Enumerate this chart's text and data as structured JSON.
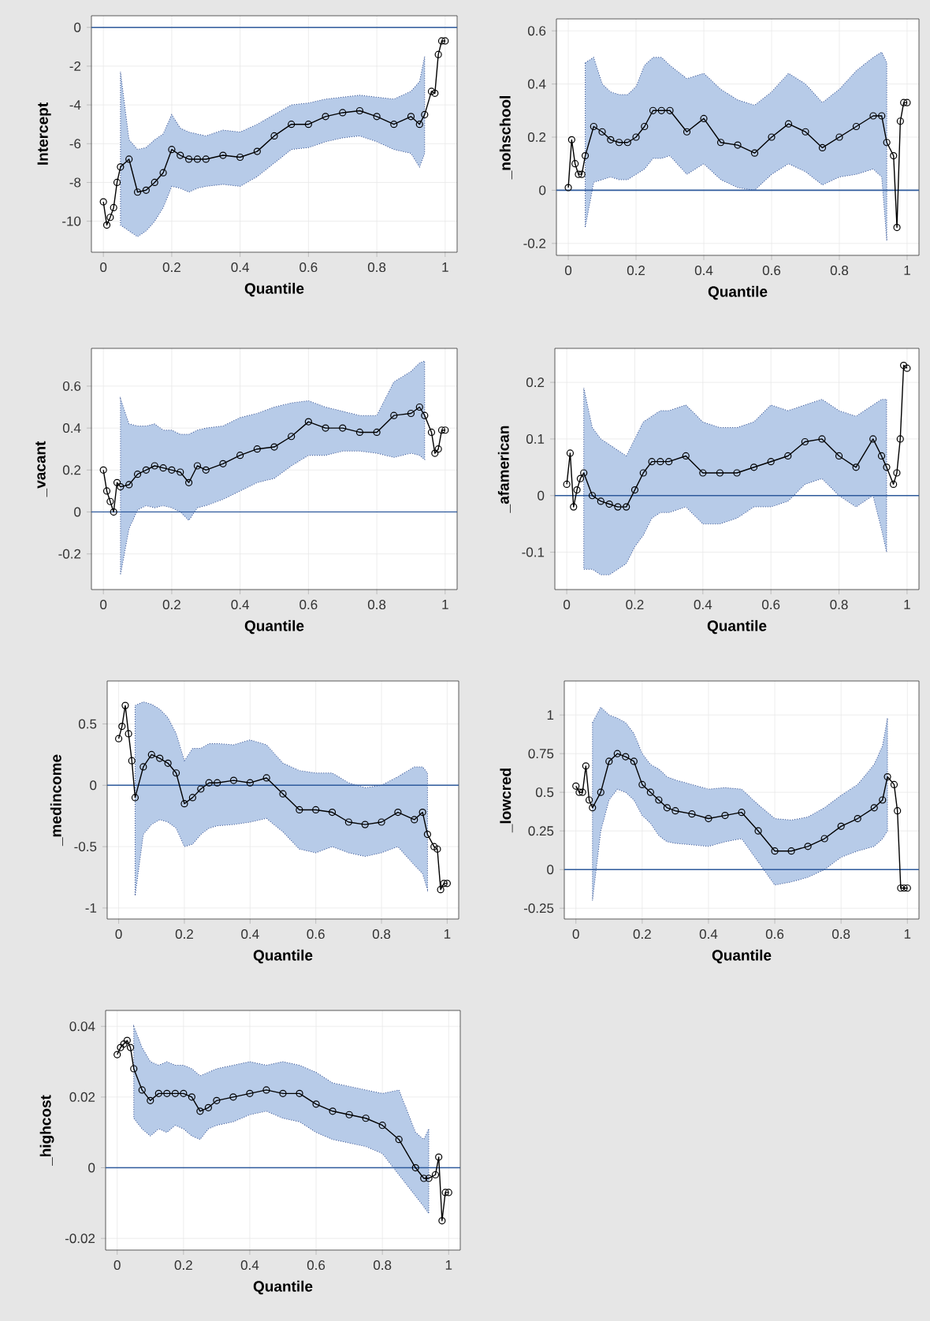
{
  "chart_data": [
    {
      "type": "line",
      "xlabel": "Quantile",
      "ylabel": "Intercept",
      "x": [
        0,
        0.01,
        0.02,
        0.03,
        0.04,
        0.05,
        0.075,
        0.1,
        0.125,
        0.15,
        0.175,
        0.2,
        0.225,
        0.25,
        0.275,
        0.3,
        0.35,
        0.4,
        0.45,
        0.5,
        0.55,
        0.6,
        0.65,
        0.7,
        0.75,
        0.8,
        0.85,
        0.9,
        0.925,
        0.94,
        0.96,
        0.97,
        0.98,
        0.99,
        1.0
      ],
      "xlim": [
        -0.035,
        1.035
      ],
      "xticks": [
        0,
        0.2,
        0.4,
        0.6,
        0.8,
        1
      ],
      "ylim": [
        -11.6,
        0.6
      ],
      "yticks": [
        -10,
        -8,
        -6,
        -4,
        -2,
        0
      ],
      "grid": true,
      "marker": "circle",
      "line_style": "solid",
      "ref_lines": [
        {
          "axis": "y",
          "value": 0,
          "color": "#2e5a9c"
        }
      ],
      "series": [
        {
          "color": "#000000",
          "values": [
            -9,
            -10.2,
            -9.8,
            -9.3,
            -8,
            -7.2,
            -6.8,
            -8.5,
            -8.4,
            -8,
            -7.5,
            -6.3,
            -6.6,
            -6.8,
            -6.8,
            -6.8,
            -6.6,
            -6.7,
            -6.4,
            -5.6,
            -5.0,
            -5.0,
            -4.6,
            -4.4,
            -4.3,
            -4.6,
            -5.0,
            -4.6,
            -5.0,
            -4.5,
            -3.3,
            -3.4,
            -1.4,
            -0.7,
            -0.7
          ],
          "lower": [
            null,
            null,
            null,
            null,
            null,
            -10.2,
            -10.5,
            -10.8,
            -10.5,
            -10.0,
            -9.3,
            -8.2,
            -8.3,
            -8.5,
            -8.3,
            -8.2,
            -8.1,
            -8.2,
            -7.7,
            -7.0,
            -6.3,
            -6.2,
            -5.9,
            -5.7,
            -5.6,
            -5.9,
            -6.3,
            -6.5,
            -7.2,
            -6.5,
            null,
            null,
            null,
            null,
            null
          ],
          "upper": [
            null,
            null,
            null,
            null,
            null,
            -2.3,
            -5.8,
            -6.3,
            -6.2,
            -5.8,
            -5.5,
            -4.5,
            -5.2,
            -5.4,
            -5.5,
            -5.6,
            -5.3,
            -5.4,
            -5.0,
            -4.5,
            -4.0,
            -3.9,
            -3.7,
            -3.6,
            -3.5,
            -3.6,
            -3.7,
            -3.3,
            -2.8,
            -1.5,
            null,
            null,
            null,
            null,
            null
          ]
        }
      ]
    },
    {
      "type": "line",
      "xlabel": "Quantile",
      "ylabel": "_nohschool",
      "x": [
        0,
        0.01,
        0.02,
        0.03,
        0.04,
        0.05,
        0.075,
        0.1,
        0.125,
        0.15,
        0.175,
        0.2,
        0.225,
        0.25,
        0.275,
        0.3,
        0.35,
        0.4,
        0.45,
        0.5,
        0.55,
        0.6,
        0.65,
        0.7,
        0.75,
        0.8,
        0.85,
        0.9,
        0.925,
        0.94,
        0.96,
        0.97,
        0.98,
        0.99,
        1.0
      ],
      "xlim": [
        -0.035,
        1.035
      ],
      "xticks": [
        0,
        0.2,
        0.4,
        0.6,
        0.8,
        1
      ],
      "ylim": [
        -0.245,
        0.645
      ],
      "yticks": [
        -0.2,
        0,
        0.2,
        0.4,
        0.6
      ],
      "grid": true,
      "marker": "circle",
      "line_style": "solid",
      "ref_lines": [
        {
          "axis": "y",
          "value": 0,
          "color": "#2e5a9c"
        }
      ],
      "series": [
        {
          "color": "#000000",
          "values": [
            0.01,
            0.19,
            0.1,
            0.06,
            0.06,
            0.13,
            0.24,
            0.22,
            0.19,
            0.18,
            0.18,
            0.2,
            0.24,
            0.3,
            0.3,
            0.3,
            0.22,
            0.27,
            0.18,
            0.17,
            0.14,
            0.2,
            0.25,
            0.22,
            0.16,
            0.2,
            0.24,
            0.28,
            0.28,
            0.18,
            0.13,
            -0.14,
            0.26,
            0.33,
            0.33
          ],
          "lower": [
            null,
            null,
            null,
            null,
            null,
            -0.14,
            0.03,
            0.04,
            0.05,
            0.04,
            0.04,
            0.06,
            0.08,
            0.12,
            0.12,
            0.13,
            0.06,
            0.1,
            0.04,
            0.01,
            0.0,
            0.06,
            0.1,
            0.07,
            0.02,
            0.05,
            0.06,
            0.08,
            0.05,
            -0.19,
            null,
            null,
            null,
            null,
            null
          ],
          "upper": [
            null,
            null,
            null,
            null,
            null,
            0.48,
            0.5,
            0.4,
            0.37,
            0.36,
            0.36,
            0.39,
            0.47,
            0.5,
            0.5,
            0.47,
            0.42,
            0.44,
            0.38,
            0.34,
            0.32,
            0.37,
            0.44,
            0.4,
            0.33,
            0.38,
            0.45,
            0.5,
            0.52,
            0.48,
            null,
            null,
            null,
            null,
            null
          ]
        }
      ]
    },
    {
      "type": "line",
      "xlabel": "Quantile",
      "ylabel": "_vacant",
      "x": [
        0,
        0.01,
        0.02,
        0.03,
        0.04,
        0.05,
        0.075,
        0.1,
        0.125,
        0.15,
        0.175,
        0.2,
        0.225,
        0.25,
        0.275,
        0.3,
        0.35,
        0.4,
        0.45,
        0.5,
        0.55,
        0.6,
        0.65,
        0.7,
        0.75,
        0.8,
        0.85,
        0.9,
        0.925,
        0.94,
        0.96,
        0.97,
        0.98,
        0.99,
        1.0
      ],
      "xlim": [
        -0.035,
        1.035
      ],
      "xticks": [
        0,
        0.2,
        0.4,
        0.6,
        0.8,
        1
      ],
      "ylim": [
        -0.37,
        0.78
      ],
      "yticks": [
        -0.2,
        0,
        0.2,
        0.4,
        0.6
      ],
      "grid": true,
      "marker": "circle",
      "line_style": "solid",
      "ref_lines": [
        {
          "axis": "y",
          "value": 0,
          "color": "#2e5a9c"
        }
      ],
      "series": [
        {
          "color": "#000000",
          "values": [
            0.2,
            0.1,
            0.05,
            0.0,
            0.14,
            0.12,
            0.13,
            0.18,
            0.2,
            0.22,
            0.21,
            0.2,
            0.19,
            0.14,
            0.22,
            0.2,
            0.23,
            0.27,
            0.3,
            0.31,
            0.36,
            0.43,
            0.4,
            0.4,
            0.38,
            0.38,
            0.46,
            0.47,
            0.5,
            0.46,
            0.38,
            0.28,
            0.3,
            0.39,
            0.39
          ],
          "lower": [
            null,
            null,
            null,
            null,
            null,
            -0.3,
            -0.08,
            0.01,
            0.03,
            0.02,
            0.03,
            0.02,
            0.0,
            -0.04,
            0.02,
            0.03,
            0.06,
            0.1,
            0.14,
            0.16,
            0.22,
            0.27,
            0.27,
            0.29,
            0.29,
            0.28,
            0.26,
            0.28,
            0.27,
            0.25,
            null,
            null,
            null,
            null,
            null
          ],
          "upper": [
            null,
            null,
            null,
            null,
            null,
            0.54,
            0.42,
            0.41,
            0.41,
            0.42,
            0.39,
            0.39,
            0.37,
            0.37,
            0.39,
            0.4,
            0.41,
            0.45,
            0.47,
            0.5,
            0.52,
            0.53,
            0.5,
            0.48,
            0.46,
            0.46,
            0.62,
            0.67,
            0.71,
            0.72,
            null,
            null,
            null,
            null,
            null
          ]
        }
      ]
    },
    {
      "type": "line",
      "xlabel": "Quantile",
      "ylabel": "_afamerican",
      "x": [
        0,
        0.01,
        0.02,
        0.03,
        0.04,
        0.05,
        0.075,
        0.1,
        0.125,
        0.15,
        0.175,
        0.2,
        0.225,
        0.25,
        0.275,
        0.3,
        0.35,
        0.4,
        0.45,
        0.5,
        0.55,
        0.6,
        0.65,
        0.7,
        0.75,
        0.8,
        0.85,
        0.9,
        0.925,
        0.94,
        0.96,
        0.97,
        0.98,
        0.99,
        1.0
      ],
      "xlim": [
        -0.035,
        1.035
      ],
      "xticks": [
        0,
        0.2,
        0.4,
        0.6,
        0.8,
        1
      ],
      "ylim": [
        -0.166,
        0.26
      ],
      "yticks": [
        -0.1,
        0,
        0.1,
        0.2
      ],
      "grid": true,
      "marker": "circle",
      "line_style": "solid",
      "ref_lines": [
        {
          "axis": "y",
          "value": 0,
          "color": "#2e5a9c"
        }
      ],
      "series": [
        {
          "color": "#000000",
          "values": [
            0.02,
            0.075,
            -0.02,
            0.01,
            0.03,
            0.04,
            0.0,
            -0.01,
            -0.015,
            -0.02,
            -0.02,
            0.01,
            0.04,
            0.06,
            0.06,
            0.06,
            0.07,
            0.04,
            0.04,
            0.04,
            0.05,
            0.06,
            0.07,
            0.095,
            0.1,
            0.07,
            0.05,
            0.1,
            0.07,
            0.05,
            0.02,
            0.04,
            0.1,
            0.23,
            0.225
          ],
          "lower": [
            null,
            null,
            null,
            null,
            null,
            -0.13,
            -0.13,
            -0.14,
            -0.14,
            -0.13,
            -0.12,
            -0.09,
            -0.07,
            -0.04,
            -0.03,
            -0.03,
            -0.02,
            -0.05,
            -0.05,
            -0.04,
            -0.02,
            -0.02,
            -0.01,
            0.02,
            0.03,
            0.0,
            -0.02,
            0.0,
            -0.06,
            -0.1,
            null,
            null,
            null,
            null,
            null
          ],
          "upper": [
            null,
            null,
            null,
            null,
            null,
            0.19,
            0.12,
            0.1,
            0.09,
            0.08,
            0.07,
            0.1,
            0.13,
            0.14,
            0.15,
            0.15,
            0.16,
            0.13,
            0.12,
            0.12,
            0.13,
            0.16,
            0.15,
            0.16,
            0.17,
            0.15,
            0.14,
            0.16,
            0.17,
            0.17,
            null,
            null,
            null,
            null,
            null
          ]
        }
      ]
    },
    {
      "type": "line",
      "xlabel": "Quantile",
      "ylabel": "_medincome",
      "x": [
        0,
        0.01,
        0.02,
        0.03,
        0.04,
        0.05,
        0.075,
        0.1,
        0.125,
        0.15,
        0.175,
        0.2,
        0.225,
        0.25,
        0.275,
        0.3,
        0.35,
        0.4,
        0.45,
        0.5,
        0.55,
        0.6,
        0.65,
        0.7,
        0.75,
        0.8,
        0.85,
        0.9,
        0.925,
        0.94,
        0.96,
        0.97,
        0.98,
        0.99,
        1.0
      ],
      "xlim": [
        -0.035,
        1.035
      ],
      "xticks": [
        0,
        0.2,
        0.4,
        0.6,
        0.8,
        1
      ],
      "ylim": [
        -1.09,
        0.85
      ],
      "yticks": [
        -1,
        -0.5,
        0,
        0.5
      ],
      "grid": true,
      "marker": "circle",
      "line_style": "solid",
      "ref_lines": [
        {
          "axis": "y",
          "value": 0,
          "color": "#2e5a9c"
        }
      ],
      "series": [
        {
          "color": "#000000",
          "values": [
            0.38,
            0.48,
            0.65,
            0.42,
            0.2,
            -0.1,
            0.15,
            0.25,
            0.22,
            0.18,
            0.1,
            -0.15,
            -0.1,
            -0.03,
            0.02,
            0.02,
            0.04,
            0.02,
            0.06,
            -0.07,
            -0.2,
            -0.2,
            -0.22,
            -0.3,
            -0.32,
            -0.3,
            -0.22,
            -0.28,
            -0.22,
            -0.4,
            -0.5,
            -0.52,
            -0.85,
            -0.8,
            -0.8
          ],
          "lower": [
            null,
            null,
            null,
            null,
            null,
            -0.9,
            -0.4,
            -0.32,
            -0.28,
            -0.3,
            -0.35,
            -0.5,
            -0.48,
            -0.4,
            -0.35,
            -0.33,
            -0.32,
            -0.3,
            -0.27,
            -0.38,
            -0.52,
            -0.55,
            -0.5,
            -0.55,
            -0.58,
            -0.55,
            -0.5,
            -0.65,
            -0.72,
            -0.85,
            null,
            null,
            null,
            null,
            null
          ],
          "upper": [
            null,
            null,
            null,
            null,
            null,
            0.65,
            0.68,
            0.66,
            0.62,
            0.55,
            0.42,
            0.2,
            0.3,
            0.3,
            0.34,
            0.34,
            0.33,
            0.37,
            0.33,
            0.18,
            0.12,
            0.1,
            0.1,
            0.02,
            -0.02,
            0.0,
            0.07,
            0.15,
            0.15,
            0.1,
            null,
            null,
            null,
            null,
            null
          ]
        }
      ]
    },
    {
      "type": "line",
      "xlabel": "Quantile",
      "ylabel": "_lowcred",
      "x": [
        0,
        0.01,
        0.02,
        0.03,
        0.04,
        0.05,
        0.075,
        0.1,
        0.125,
        0.15,
        0.175,
        0.2,
        0.225,
        0.25,
        0.275,
        0.3,
        0.35,
        0.4,
        0.45,
        0.5,
        0.55,
        0.6,
        0.65,
        0.7,
        0.75,
        0.8,
        0.85,
        0.9,
        0.925,
        0.94,
        0.96,
        0.97,
        0.98,
        0.99,
        1.0
      ],
      "xlim": [
        -0.035,
        1.035
      ],
      "xticks": [
        0,
        0.2,
        0.4,
        0.6,
        0.8,
        1
      ],
      "ylim": [
        -0.32,
        1.22
      ],
      "yticks": [
        -0.25,
        0,
        0.25,
        0.5,
        0.75,
        1
      ],
      "grid": true,
      "marker": "circle",
      "line_style": "solid",
      "ref_lines": [
        {
          "axis": "y",
          "value": 0,
          "color": "#2e5a9c"
        }
      ],
      "series": [
        {
          "color": "#000000",
          "values": [
            0.54,
            0.5,
            0.5,
            0.67,
            0.45,
            0.4,
            0.5,
            0.7,
            0.75,
            0.73,
            0.7,
            0.55,
            0.5,
            0.45,
            0.4,
            0.38,
            0.36,
            0.33,
            0.35,
            0.37,
            0.25,
            0.12,
            0.12,
            0.15,
            0.2,
            0.28,
            0.33,
            0.4,
            0.45,
            0.6,
            0.55,
            0.38,
            -0.12,
            -0.12,
            -0.12
          ],
          "lower": [
            null,
            null,
            null,
            null,
            null,
            -0.2,
            0.25,
            0.45,
            0.52,
            0.5,
            0.45,
            0.35,
            0.3,
            0.22,
            0.18,
            0.17,
            0.16,
            0.15,
            0.18,
            0.2,
            0.05,
            -0.1,
            -0.08,
            -0.05,
            0.0,
            0.08,
            0.12,
            0.15,
            0.2,
            0.25,
            null,
            null,
            null,
            null,
            null
          ],
          "upper": [
            null,
            null,
            null,
            null,
            null,
            0.95,
            1.05,
            1.0,
            0.98,
            0.95,
            0.88,
            0.75,
            0.68,
            0.65,
            0.6,
            0.58,
            0.55,
            0.52,
            0.53,
            0.52,
            0.42,
            0.33,
            0.32,
            0.34,
            0.4,
            0.48,
            0.55,
            0.68,
            0.8,
            0.98,
            null,
            null,
            null,
            null,
            null
          ]
        }
      ]
    },
    {
      "type": "line",
      "xlabel": "Quantile",
      "ylabel": "_highcost",
      "x": [
        0,
        0.01,
        0.02,
        0.03,
        0.04,
        0.05,
        0.075,
        0.1,
        0.125,
        0.15,
        0.175,
        0.2,
        0.225,
        0.25,
        0.275,
        0.3,
        0.35,
        0.4,
        0.45,
        0.5,
        0.55,
        0.6,
        0.65,
        0.7,
        0.75,
        0.8,
        0.85,
        0.9,
        0.925,
        0.94,
        0.96,
        0.97,
        0.98,
        0.99,
        1.0
      ],
      "xlim": [
        -0.035,
        1.035
      ],
      "xticks": [
        0,
        0.2,
        0.4,
        0.6,
        0.8,
        1
      ],
      "ylim": [
        -0.0233,
        0.0445
      ],
      "yticks": [
        -0.02,
        0,
        0.02,
        0.04
      ],
      "grid": true,
      "marker": "circle",
      "line_style": "solid",
      "ref_lines": [
        {
          "axis": "y",
          "value": 0,
          "color": "#2e5a9c"
        }
      ],
      "series": [
        {
          "color": "#000000",
          "values": [
            0.032,
            0.034,
            0.035,
            0.036,
            0.034,
            0.028,
            0.022,
            0.019,
            0.021,
            0.021,
            0.021,
            0.021,
            0.02,
            0.016,
            0.017,
            0.019,
            0.02,
            0.021,
            0.022,
            0.021,
            0.021,
            0.018,
            0.016,
            0.015,
            0.014,
            0.012,
            0.008,
            0.0,
            -0.003,
            -0.003,
            -0.002,
            0.003,
            -0.015,
            -0.007,
            -0.007
          ],
          "lower": [
            null,
            null,
            null,
            null,
            null,
            0.014,
            0.011,
            0.009,
            0.011,
            0.01,
            0.012,
            0.011,
            0.009,
            0.008,
            0.011,
            0.012,
            0.013,
            0.015,
            0.016,
            0.014,
            0.013,
            0.01,
            0.008,
            0.007,
            0.006,
            0.004,
            -0.002,
            -0.008,
            -0.011,
            -0.013,
            null,
            null,
            null,
            null,
            null
          ],
          "upper": [
            null,
            null,
            null,
            null,
            null,
            0.04,
            0.034,
            0.03,
            0.029,
            0.03,
            0.029,
            0.029,
            0.028,
            0.026,
            0.027,
            0.028,
            0.029,
            0.03,
            0.029,
            0.03,
            0.029,
            0.027,
            0.024,
            0.023,
            0.022,
            0.021,
            0.022,
            0.01,
            0.008,
            0.011,
            null,
            null,
            null,
            null,
            null
          ]
        }
      ]
    }
  ]
}
